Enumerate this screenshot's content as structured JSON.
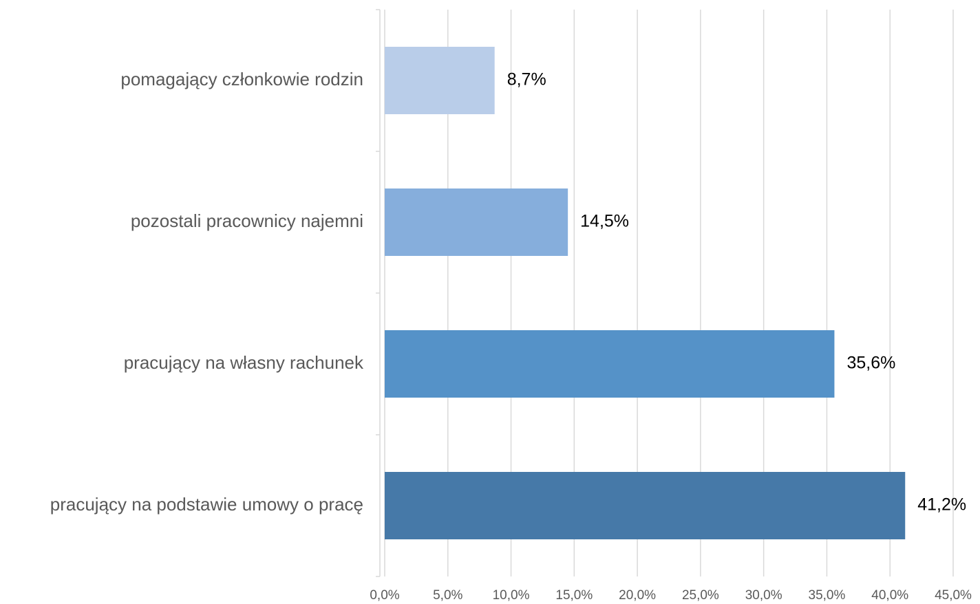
{
  "chart_data": {
    "type": "bar",
    "orientation": "horizontal",
    "categories": [
      "pomagający członkowie rodzin",
      "pozostali pracownicy najemni",
      "pracujący na własny rachunek",
      "pracujący na podstawie umowy o pracę"
    ],
    "values": [
      8.7,
      14.5,
      35.6,
      41.2
    ],
    "value_labels": [
      "8,7%",
      "14,5%",
      "35,6%",
      "41,2%"
    ],
    "colors": [
      "#b9cde9",
      "#86aedc",
      "#5592c8",
      "#4679a8"
    ],
    "xlim": [
      0,
      45
    ],
    "xticks": [
      {
        "value": 0,
        "label": "0,0%"
      },
      {
        "value": 5,
        "label": "5,0%"
      },
      {
        "value": 10,
        "label": "10,0%"
      },
      {
        "value": 15,
        "label": "15,0%"
      },
      {
        "value": 20,
        "label": "20,0%"
      },
      {
        "value": 25,
        "label": "25,0%"
      },
      {
        "value": 30,
        "label": "30,0%"
      },
      {
        "value": 35,
        "label": "35,0%"
      },
      {
        "value": 40,
        "label": "40,0%"
      },
      {
        "value": 45,
        "label": "45,0%"
      }
    ],
    "grid": true
  }
}
